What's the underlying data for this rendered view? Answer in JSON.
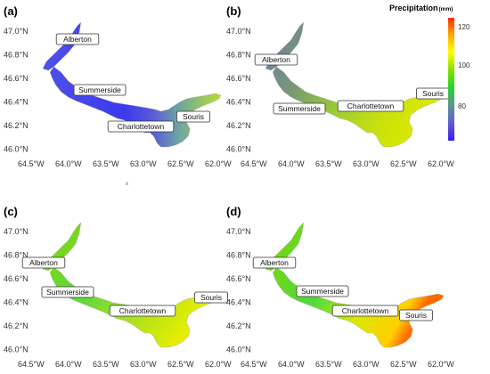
{
  "panels": [
    {
      "label": "(a)",
      "scheme": "a"
    },
    {
      "label": "(b)",
      "scheme": "b"
    },
    {
      "label": "(c)",
      "scheme": "c"
    },
    {
      "label": "(d)",
      "scheme": "d"
    }
  ],
  "axes": {
    "lat_ticks": [
      "47.0°N",
      "46.8°N",
      "46.6°N",
      "46.4°N",
      "46.2°N",
      "46.0°N"
    ],
    "lon_ticks": [
      "64.5°W",
      "64.0°W",
      "63.5°W",
      "63.0°W",
      "62.5°W",
      "62.0°W"
    ]
  },
  "cities": [
    "Alberton",
    "Summerside",
    "Charlottetown",
    "Souris"
  ],
  "legend": {
    "title": "Precipitation",
    "unit": "(mm)",
    "ticks": [
      "120",
      "100",
      "80"
    ],
    "colors": [
      "#ff2a00",
      "#ffaa00",
      "#ffff00",
      "#88e000",
      "#2ad42a",
      "#5a9a8a",
      "#6060cc",
      "#3a1aff"
    ]
  },
  "stray_mark": "x"
}
